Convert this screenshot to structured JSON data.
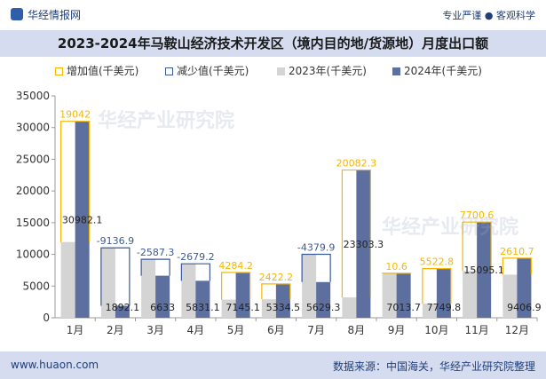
{
  "header": {
    "logo_text": "华经情报网",
    "tagline": "专业严谨 ● 客观科学"
  },
  "title": "2023-2024年马鞍山经济技术开发区（境内目的地/货源地）月度出口额",
  "footer": {
    "url": "www.huaon.com",
    "source": "数据来源：中国海关，华经产业研究院整理"
  },
  "watermark": "华经产业研究院",
  "colors": {
    "increase": "#f5b700",
    "decrease": "#3b5a9a",
    "bar2023": "#d4d4d4",
    "bar2024": "#5d6f9e"
  },
  "chart_data": {
    "type": "bar",
    "categories": [
      "1月",
      "2月",
      "3月",
      "4月",
      "5月",
      "6月",
      "7月",
      "8月",
      "9月",
      "10月",
      "11月",
      "12月"
    ],
    "series": [
      {
        "name": "2023年(千美元)",
        "values": [
          11940.1,
          11029.0,
          9220.3,
          8510.3,
          2861.0,
          2912.3,
          10009.2,
          3221.0,
          7003.1,
          2226.9,
          7394.5,
          6796.2
        ]
      },
      {
        "name": "2024年(千美元)",
        "values": [
          30982.1,
          1892.1,
          6633,
          5831.1,
          7145.1,
          5334.5,
          5629.3,
          23303.3,
          7013.7,
          7749.8,
          15095.1,
          9406.9
        ]
      }
    ],
    "change_labels": [
      "19042",
      "-9136.9",
      "-2587.3",
      "-2679.2",
      "4284.2",
      "2422.2",
      "-4379.9",
      "20082.3",
      "10.6",
      "5522.8",
      "7700.6",
      "2610.7"
    ],
    "value_labels": [
      "30982.1",
      "1892.1",
      "6633",
      "5831.1",
      "7145.1",
      "5334.5",
      "5629.3",
      "23303.3",
      "7013.7",
      "7749.8",
      "15095.1",
      "9406.9"
    ],
    "legend": [
      "增加值(千美元)",
      "减少值(千美元)",
      "2023年(千美元)",
      "2024年(千美元)"
    ],
    "ylim": [
      0,
      35000
    ],
    "yticks": [
      0,
      5000,
      10000,
      15000,
      20000,
      25000,
      30000,
      35000
    ],
    "ytick_labels": [
      "0",
      "5000",
      "10000",
      "15000",
      "20000",
      "25000",
      "30000",
      "35000"
    ]
  }
}
